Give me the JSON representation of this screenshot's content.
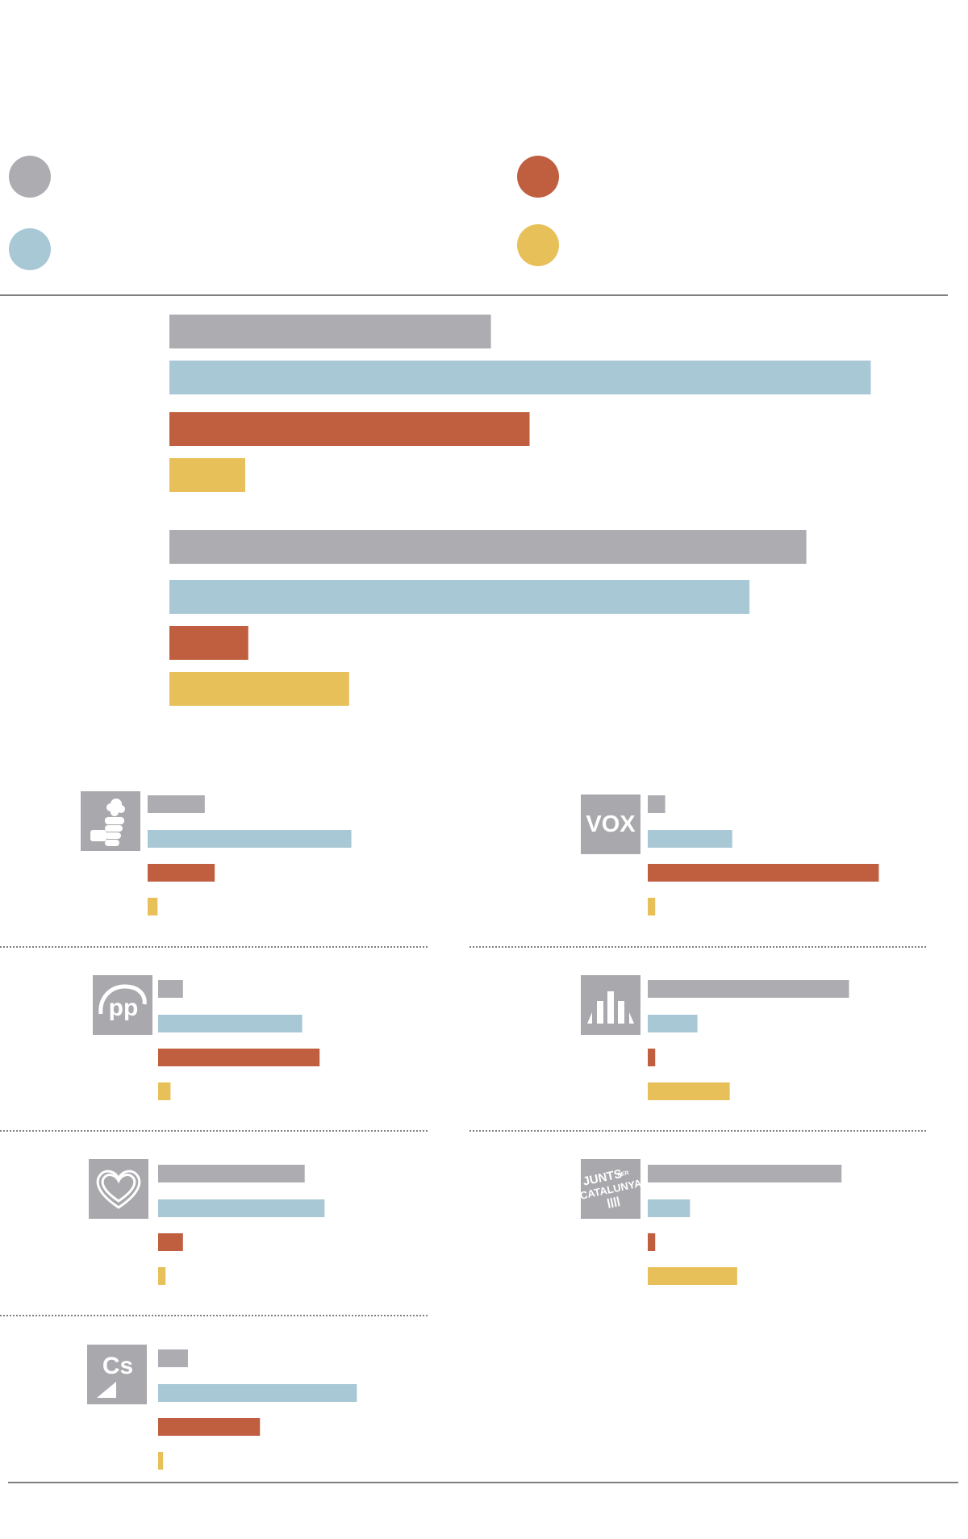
{
  "colors": {
    "gray": "#adacb1",
    "blue": "#a8c8d5",
    "red": "#bf5f40",
    "yellow": "#e8c05a",
    "logo_bg": "#a9a8ac",
    "rule": "#555555"
  },
  "legend": {
    "items": [
      {
        "color": "gray",
        "label": ""
      },
      {
        "color": "red",
        "label": ""
      },
      {
        "color": "blue",
        "label": ""
      },
      {
        "color": "yellow",
        "label": ""
      }
    ]
  },
  "chart_data": [
    {
      "type": "bar",
      "orientation": "horizontal",
      "series_order": [
        "gray",
        "blue",
        "red",
        "yellow"
      ],
      "groups": [
        {
          "label": "",
          "values": [
            42.4,
            92.5,
            47.5,
            10
          ]
        },
        {
          "label": "",
          "values": [
            84,
            76.5,
            10.4,
            23.7
          ]
        }
      ],
      "xlim": [
        0,
        100
      ],
      "grid": false
    },
    {
      "type": "bar",
      "orientation": "horizontal",
      "series_order": [
        "gray",
        "blue",
        "red",
        "yellow"
      ],
      "xlim": [
        0,
        100
      ],
      "parties": [
        {
          "logo": "psoe-logo",
          "values": [
            23,
            82,
            27,
            4
          ]
        },
        {
          "logo": "vox-logo",
          "values": [
            7,
            34,
            93,
            3
          ]
        },
        {
          "logo": "pp-logo",
          "values": [
            10,
            58,
            65,
            5
          ]
        },
        {
          "logo": "erc-logo",
          "values": [
            81,
            20,
            3,
            33
          ]
        },
        {
          "logo": "podemos-logo",
          "values": [
            59,
            67,
            10,
            3
          ]
        },
        {
          "logo": "junts-logo",
          "values": [
            78,
            17,
            3,
            36
          ]
        },
        {
          "logo": "cs-logo",
          "values": [
            12,
            80,
            41,
            2
          ]
        }
      ],
      "logo_texts": {
        "vox": "VOX",
        "pp": "pp",
        "cs": "Cs",
        "junts_1": "JUNTS",
        "junts_per": "PER",
        "junts_2": "CATALUNYA"
      }
    }
  ]
}
